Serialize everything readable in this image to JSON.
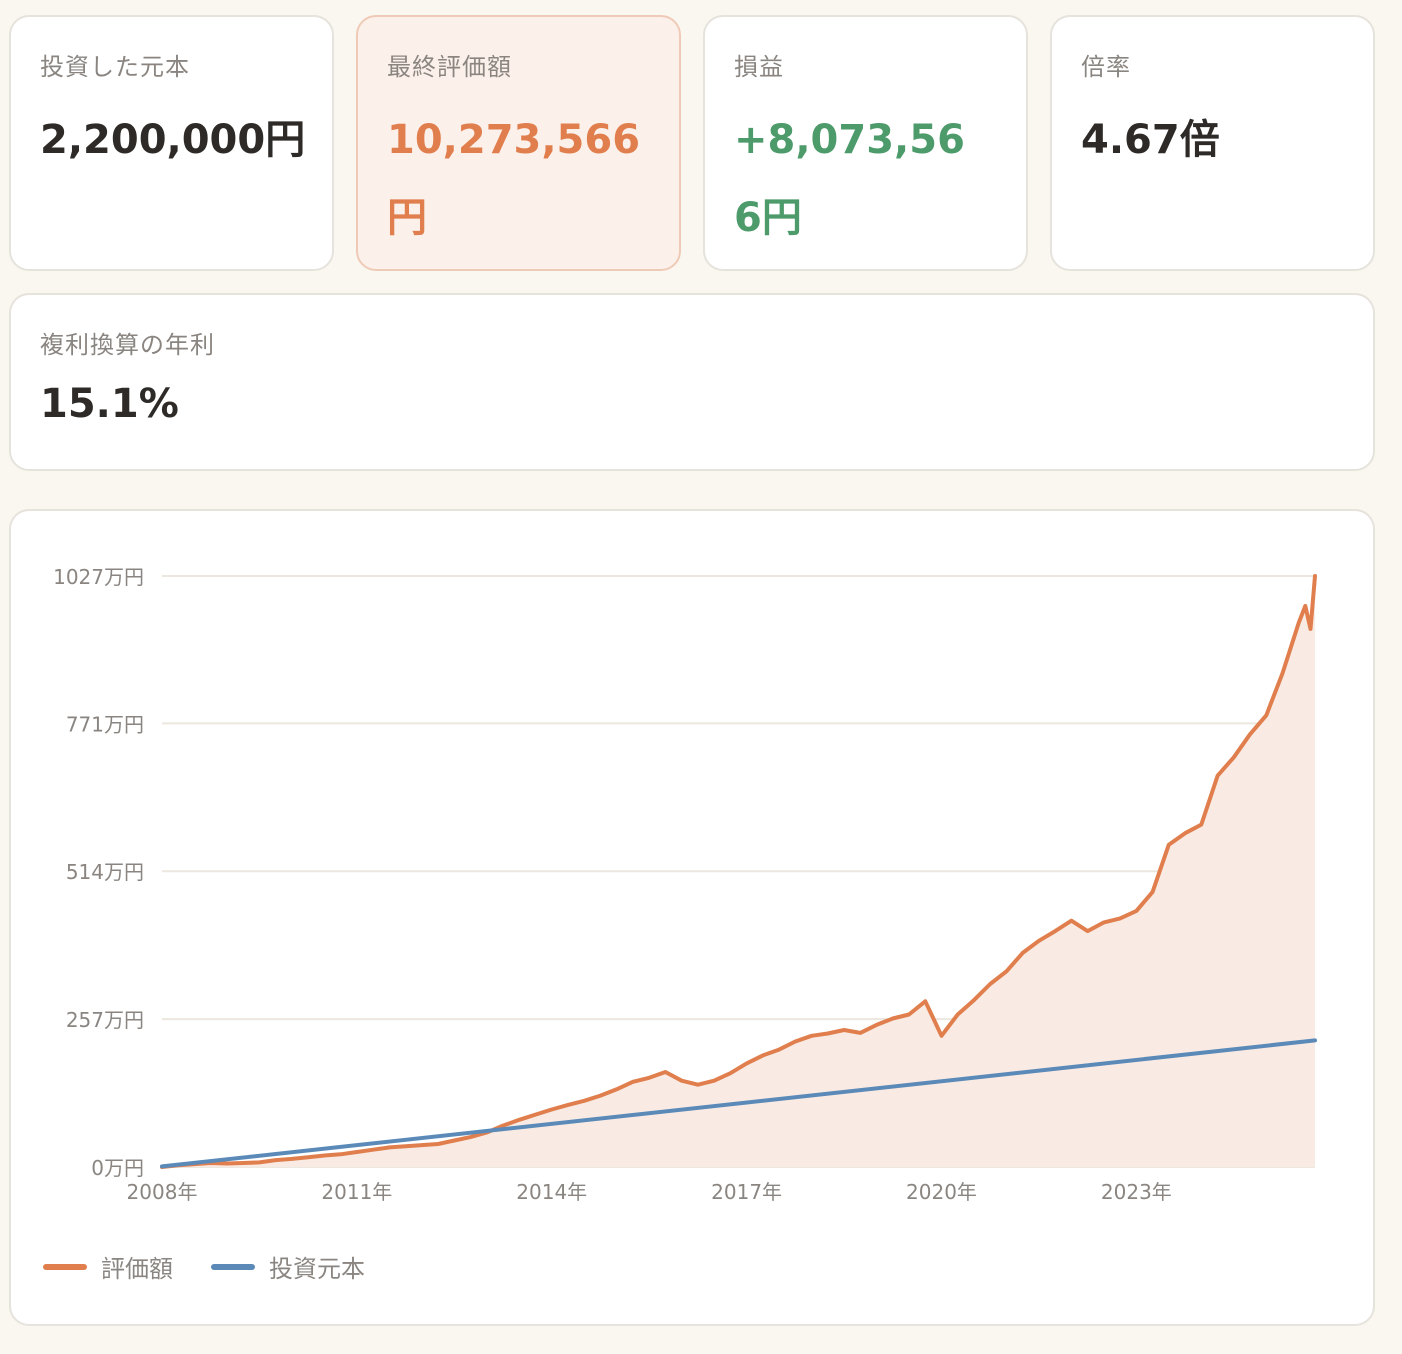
{
  "stats": {
    "principal": {
      "label": "投資した元本",
      "value": "2,200,000円"
    },
    "final_value": {
      "label": "最終評価額",
      "value": "10,273,566円"
    },
    "profit": {
      "label": "損益",
      "value": "+8,073,566円"
    },
    "multiple": {
      "label": "倍率",
      "value": "4.67倍"
    }
  },
  "annual": {
    "label": "複利換算の年利",
    "value": "15.1%"
  },
  "colors": {
    "valuation": "#e07f4d",
    "principal": "#5b8ab8",
    "fill": "#f9ebe4",
    "profit_text": "#4d9a6b",
    "grid": "#ece7df",
    "axis_text": "#8a8580"
  },
  "chart_data": {
    "type": "area",
    "title": "",
    "xlabel": "",
    "ylabel": "",
    "x_unit": "year",
    "xlim": [
      2008.0,
      2025.75
    ],
    "ylim": [
      0,
      1027
    ],
    "y_unit": "万円",
    "yticks": [
      {
        "value": 0,
        "label": "0万円"
      },
      {
        "value": 257,
        "label": "257万円"
      },
      {
        "value": 514,
        "label": "514万円"
      },
      {
        "value": 771,
        "label": "771万円"
      },
      {
        "value": 1027,
        "label": "1027万円"
      }
    ],
    "xticks": [
      {
        "value": 2008,
        "label": "2008年"
      },
      {
        "value": 2011,
        "label": "2011年"
      },
      {
        "value": 2014,
        "label": "2014年"
      },
      {
        "value": 2017,
        "label": "2017年"
      },
      {
        "value": 2020,
        "label": "2020年"
      },
      {
        "value": 2023,
        "label": "2023年"
      }
    ],
    "grid": true,
    "legend_position": "bottom-left",
    "series": [
      {
        "name": "評価額",
        "color": "#e07f4d",
        "filled": true,
        "points": [
          [
            2008.0,
            0
          ],
          [
            2008.25,
            3
          ],
          [
            2008.5,
            5
          ],
          [
            2008.75,
            7
          ],
          [
            2009.0,
            6
          ],
          [
            2009.25,
            7
          ],
          [
            2009.5,
            8
          ],
          [
            2009.75,
            12
          ],
          [
            2010.0,
            14
          ],
          [
            2010.25,
            17
          ],
          [
            2010.5,
            20
          ],
          [
            2010.75,
            22
          ],
          [
            2011.0,
            26
          ],
          [
            2011.25,
            30
          ],
          [
            2011.5,
            34
          ],
          [
            2011.75,
            36
          ],
          [
            2012.0,
            38
          ],
          [
            2012.25,
            40
          ],
          [
            2012.5,
            46
          ],
          [
            2012.75,
            52
          ],
          [
            2013.0,
            60
          ],
          [
            2013.25,
            72
          ],
          [
            2013.5,
            82
          ],
          [
            2013.75,
            91
          ],
          [
            2014.0,
            100
          ],
          [
            2014.25,
            108
          ],
          [
            2014.5,
            115
          ],
          [
            2014.75,
            124
          ],
          [
            2015.0,
            135
          ],
          [
            2015.25,
            148
          ],
          [
            2015.5,
            155
          ],
          [
            2015.75,
            165
          ],
          [
            2016.0,
            150
          ],
          [
            2016.25,
            143
          ],
          [
            2016.5,
            150
          ],
          [
            2016.75,
            163
          ],
          [
            2017.0,
            180
          ],
          [
            2017.25,
            194
          ],
          [
            2017.5,
            204
          ],
          [
            2017.75,
            218
          ],
          [
            2018.0,
            228
          ],
          [
            2018.25,
            232
          ],
          [
            2018.5,
            238
          ],
          [
            2018.75,
            233
          ],
          [
            2019.0,
            247
          ],
          [
            2019.25,
            258
          ],
          [
            2019.5,
            265
          ],
          [
            2019.75,
            288
          ],
          [
            2020.0,
            228
          ],
          [
            2020.25,
            265
          ],
          [
            2020.5,
            290
          ],
          [
            2020.75,
            318
          ],
          [
            2021.0,
            340
          ],
          [
            2021.25,
            372
          ],
          [
            2021.5,
            393
          ],
          [
            2021.75,
            410
          ],
          [
            2022.0,
            428
          ],
          [
            2022.25,
            410
          ],
          [
            2022.5,
            425
          ],
          [
            2022.75,
            432
          ],
          [
            2023.0,
            445
          ],
          [
            2023.25,
            478
          ],
          [
            2023.5,
            560
          ],
          [
            2023.75,
            580
          ],
          [
            2024.0,
            595
          ],
          [
            2024.25,
            680
          ],
          [
            2024.5,
            712
          ],
          [
            2024.75,
            752
          ],
          [
            2025.0,
            785
          ],
          [
            2025.25,
            858
          ],
          [
            2025.5,
            946
          ],
          [
            2025.6,
            975
          ],
          [
            2025.68,
            935
          ],
          [
            2025.75,
            1027
          ]
        ]
      },
      {
        "name": "投資元本",
        "color": "#5b8ab8",
        "filled": false,
        "points": [
          [
            2008.0,
            1
          ],
          [
            2025.75,
            220
          ]
        ]
      }
    ]
  }
}
